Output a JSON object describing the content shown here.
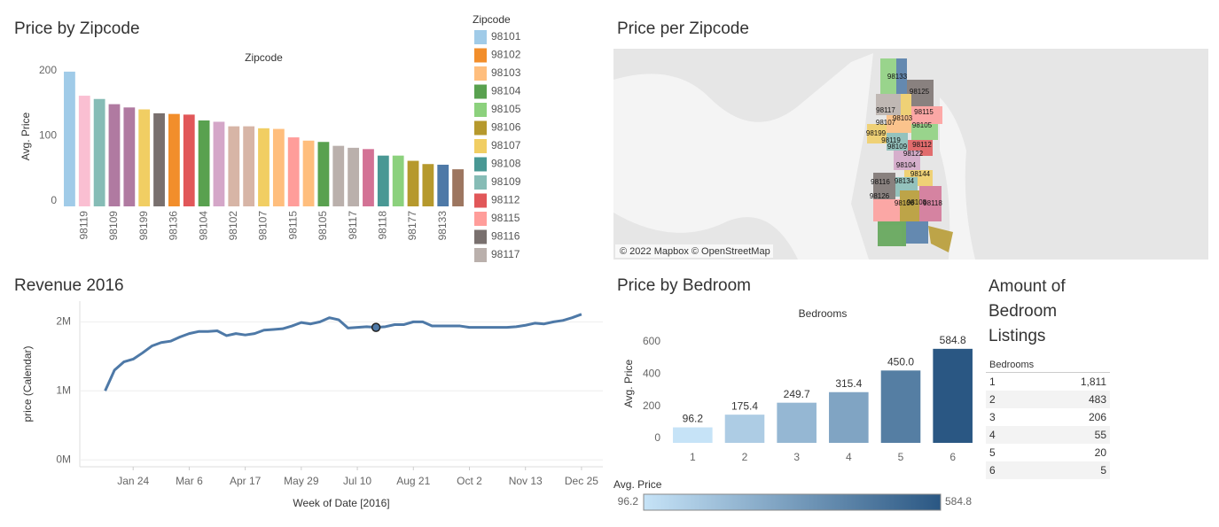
{
  "chart_data": [
    {
      "type": "bar",
      "title": "Price by Zipcode",
      "header": "Zipcode",
      "y_label": "Avg. Price",
      "categories": [
        null,
        "98119",
        null,
        "98109",
        null,
        "98199",
        null,
        "98136",
        null,
        "98104",
        null,
        "98102",
        null,
        "98107",
        null,
        "98115",
        null,
        "98105",
        null,
        "98117",
        null,
        "98118",
        null,
        "98177",
        null,
        "98133",
        null
      ],
      "values": [
        207,
        170,
        165,
        157,
        152,
        149,
        143,
        142,
        141,
        132,
        130,
        123,
        123,
        120,
        119,
        106,
        101,
        99,
        93,
        90,
        88,
        78,
        78,
        70,
        65,
        64,
        57
      ],
      "colors": [
        "#a0cbe8",
        "#fabfd2",
        "#86bcb6",
        "#b07aa1",
        "#b07aa1",
        "#f1ce63",
        "#79706e",
        "#f28e2b",
        "#e15759",
        "#59a14f",
        "#d4a6c8",
        "#d7b5a6",
        "#d7b5a6",
        "#f1ce63",
        "#ffbe7d",
        "#ff9d9a",
        "#ffbe7d",
        "#59a14f",
        "#bab0ac",
        "#bab0ac",
        "#d37295",
        "#499894",
        "#8cd17d",
        "#b6992d",
        "#b6992d",
        "#4e79a7",
        "#9d7660"
      ],
      "ylim": [
        0,
        215
      ],
      "yticks": [
        0,
        100,
        200
      ],
      "legend": {
        "title": "Zipcode",
        "entries": [
          {
            "name": "98101",
            "color": "#a0cbe8"
          },
          {
            "name": "98102",
            "color": "#f28e2b"
          },
          {
            "name": "98103",
            "color": "#ffbe7d"
          },
          {
            "name": "98104",
            "color": "#59a14f"
          },
          {
            "name": "98105",
            "color": "#8cd17d"
          },
          {
            "name": "98106",
            "color": "#b6992d"
          },
          {
            "name": "98107",
            "color": "#f1ce63"
          },
          {
            "name": "98108",
            "color": "#499894"
          },
          {
            "name": "98109",
            "color": "#86bcb6"
          },
          {
            "name": "98112",
            "color": "#e15759"
          },
          {
            "name": "98115",
            "color": "#ff9d9a"
          },
          {
            "name": "98116",
            "color": "#79706e"
          },
          {
            "name": "98117",
            "color": "#bab0ac"
          }
        ]
      }
    },
    {
      "type": "line",
      "title": "Revenue 2016",
      "y_label": "price (Calendar)",
      "x_label": "Week of Date [2016]",
      "color": "#4e79a7",
      "x": [
        "2016-01-03",
        "2016-01-10",
        "2016-01-17",
        "2016-01-24",
        "2016-01-31",
        "2016-02-07",
        "2016-02-14",
        "2016-02-21",
        "2016-02-28",
        "2016-03-06",
        "2016-03-13",
        "2016-03-20",
        "2016-03-27",
        "2016-04-03",
        "2016-04-10",
        "2016-04-17",
        "2016-04-24",
        "2016-05-01",
        "2016-05-08",
        "2016-05-15",
        "2016-05-22",
        "2016-05-29",
        "2016-06-05",
        "2016-06-12",
        "2016-06-19",
        "2016-06-26",
        "2016-07-03",
        "2016-07-10",
        "2016-07-17",
        "2016-07-24",
        "2016-07-31",
        "2016-08-07",
        "2016-08-14",
        "2016-08-21",
        "2016-08-28",
        "2016-09-04",
        "2016-09-11",
        "2016-09-18",
        "2016-09-25",
        "2016-10-02",
        "2016-10-09",
        "2016-10-16",
        "2016-10-23",
        "2016-10-30",
        "2016-11-06",
        "2016-11-13",
        "2016-11-20",
        "2016-11-27",
        "2016-12-04",
        "2016-12-11",
        "2016-12-18",
        "2016-12-25"
      ],
      "values": [
        1000000,
        1300000,
        1420000,
        1460000,
        1550000,
        1650000,
        1700000,
        1720000,
        1780000,
        1830000,
        1860000,
        1860000,
        1870000,
        1800000,
        1830000,
        1810000,
        1830000,
        1880000,
        1890000,
        1900000,
        1940000,
        1990000,
        1970000,
        2000000,
        2060000,
        2030000,
        1910000,
        1920000,
        1930000,
        1920000,
        1930000,
        1960000,
        1960000,
        2000000,
        2000000,
        1940000,
        1940000,
        1940000,
        1940000,
        1920000,
        1920000,
        1920000,
        1920000,
        1920000,
        1930000,
        1950000,
        1980000,
        1970000,
        2000000,
        2020000,
        2060000,
        2110000
      ],
      "xlim": [
        "2015-12-15",
        "2017-01-10"
      ],
      "xticks": [
        {
          "value": "2016-01-24",
          "label": "Jan 24"
        },
        {
          "value": "2016-03-06",
          "label": "Mar 6"
        },
        {
          "value": "2016-04-17",
          "label": "Apr 17"
        },
        {
          "value": "2016-05-29",
          "label": "May 29"
        },
        {
          "value": "2016-07-10",
          "label": "Jul 10"
        },
        {
          "value": "2016-08-21",
          "label": "Aug 21"
        },
        {
          "value": "2016-10-02",
          "label": "Oct 2"
        },
        {
          "value": "2016-11-13",
          "label": "Nov 13"
        },
        {
          "value": "2016-12-25",
          "label": "Dec 25"
        }
      ],
      "ylim": [
        -100000,
        2300000
      ],
      "yticks": [
        {
          "value": 0,
          "label": "0M"
        },
        {
          "value": 1000000,
          "label": "1M"
        },
        {
          "value": 2000000,
          "label": "2M"
        }
      ],
      "grid": true
    },
    {
      "type": "bar",
      "title": "Price by Bedroom",
      "header": "Bedrooms",
      "y_label": "Avg. Price",
      "categories": [
        "1",
        "2",
        "3",
        "4",
        "5",
        "6"
      ],
      "values": [
        96.2,
        175.4,
        249.7,
        315.4,
        450.0,
        584.8
      ],
      "value_labels": [
        "96.2",
        "175.4",
        "249.7",
        "315.4",
        "450.0",
        "584.8"
      ],
      "ylim": [
        0,
        650
      ],
      "yticks": [
        0,
        200,
        400,
        600
      ],
      "color_legend": {
        "title": "Avg. Price",
        "range": [
          96.2,
          584.8
        ],
        "colors": [
          "#c6e3f7",
          "#2a5783"
        ]
      }
    }
  ],
  "map": {
    "title": "Price per Zipcode",
    "attribution": "© 2022 Mapbox © OpenStreetMap",
    "labels": [
      "98133",
      "98125",
      "98117",
      "98115",
      "98103",
      "98107",
      "98105",
      "98199",
      "98119",
      "98112",
      "98109",
      "98122",
      "98104",
      "98144",
      "98116",
      "98134",
      "98126",
      "98106",
      "98108",
      "98118"
    ]
  },
  "table": {
    "title": "Amount of Bedroom Listings",
    "column": "Bedrooms",
    "rows": [
      [
        "1",
        "1,811"
      ],
      [
        "2",
        "483"
      ],
      [
        "3",
        "206"
      ],
      [
        "4",
        "55"
      ],
      [
        "5",
        "20"
      ],
      [
        "6",
        "5"
      ]
    ]
  }
}
